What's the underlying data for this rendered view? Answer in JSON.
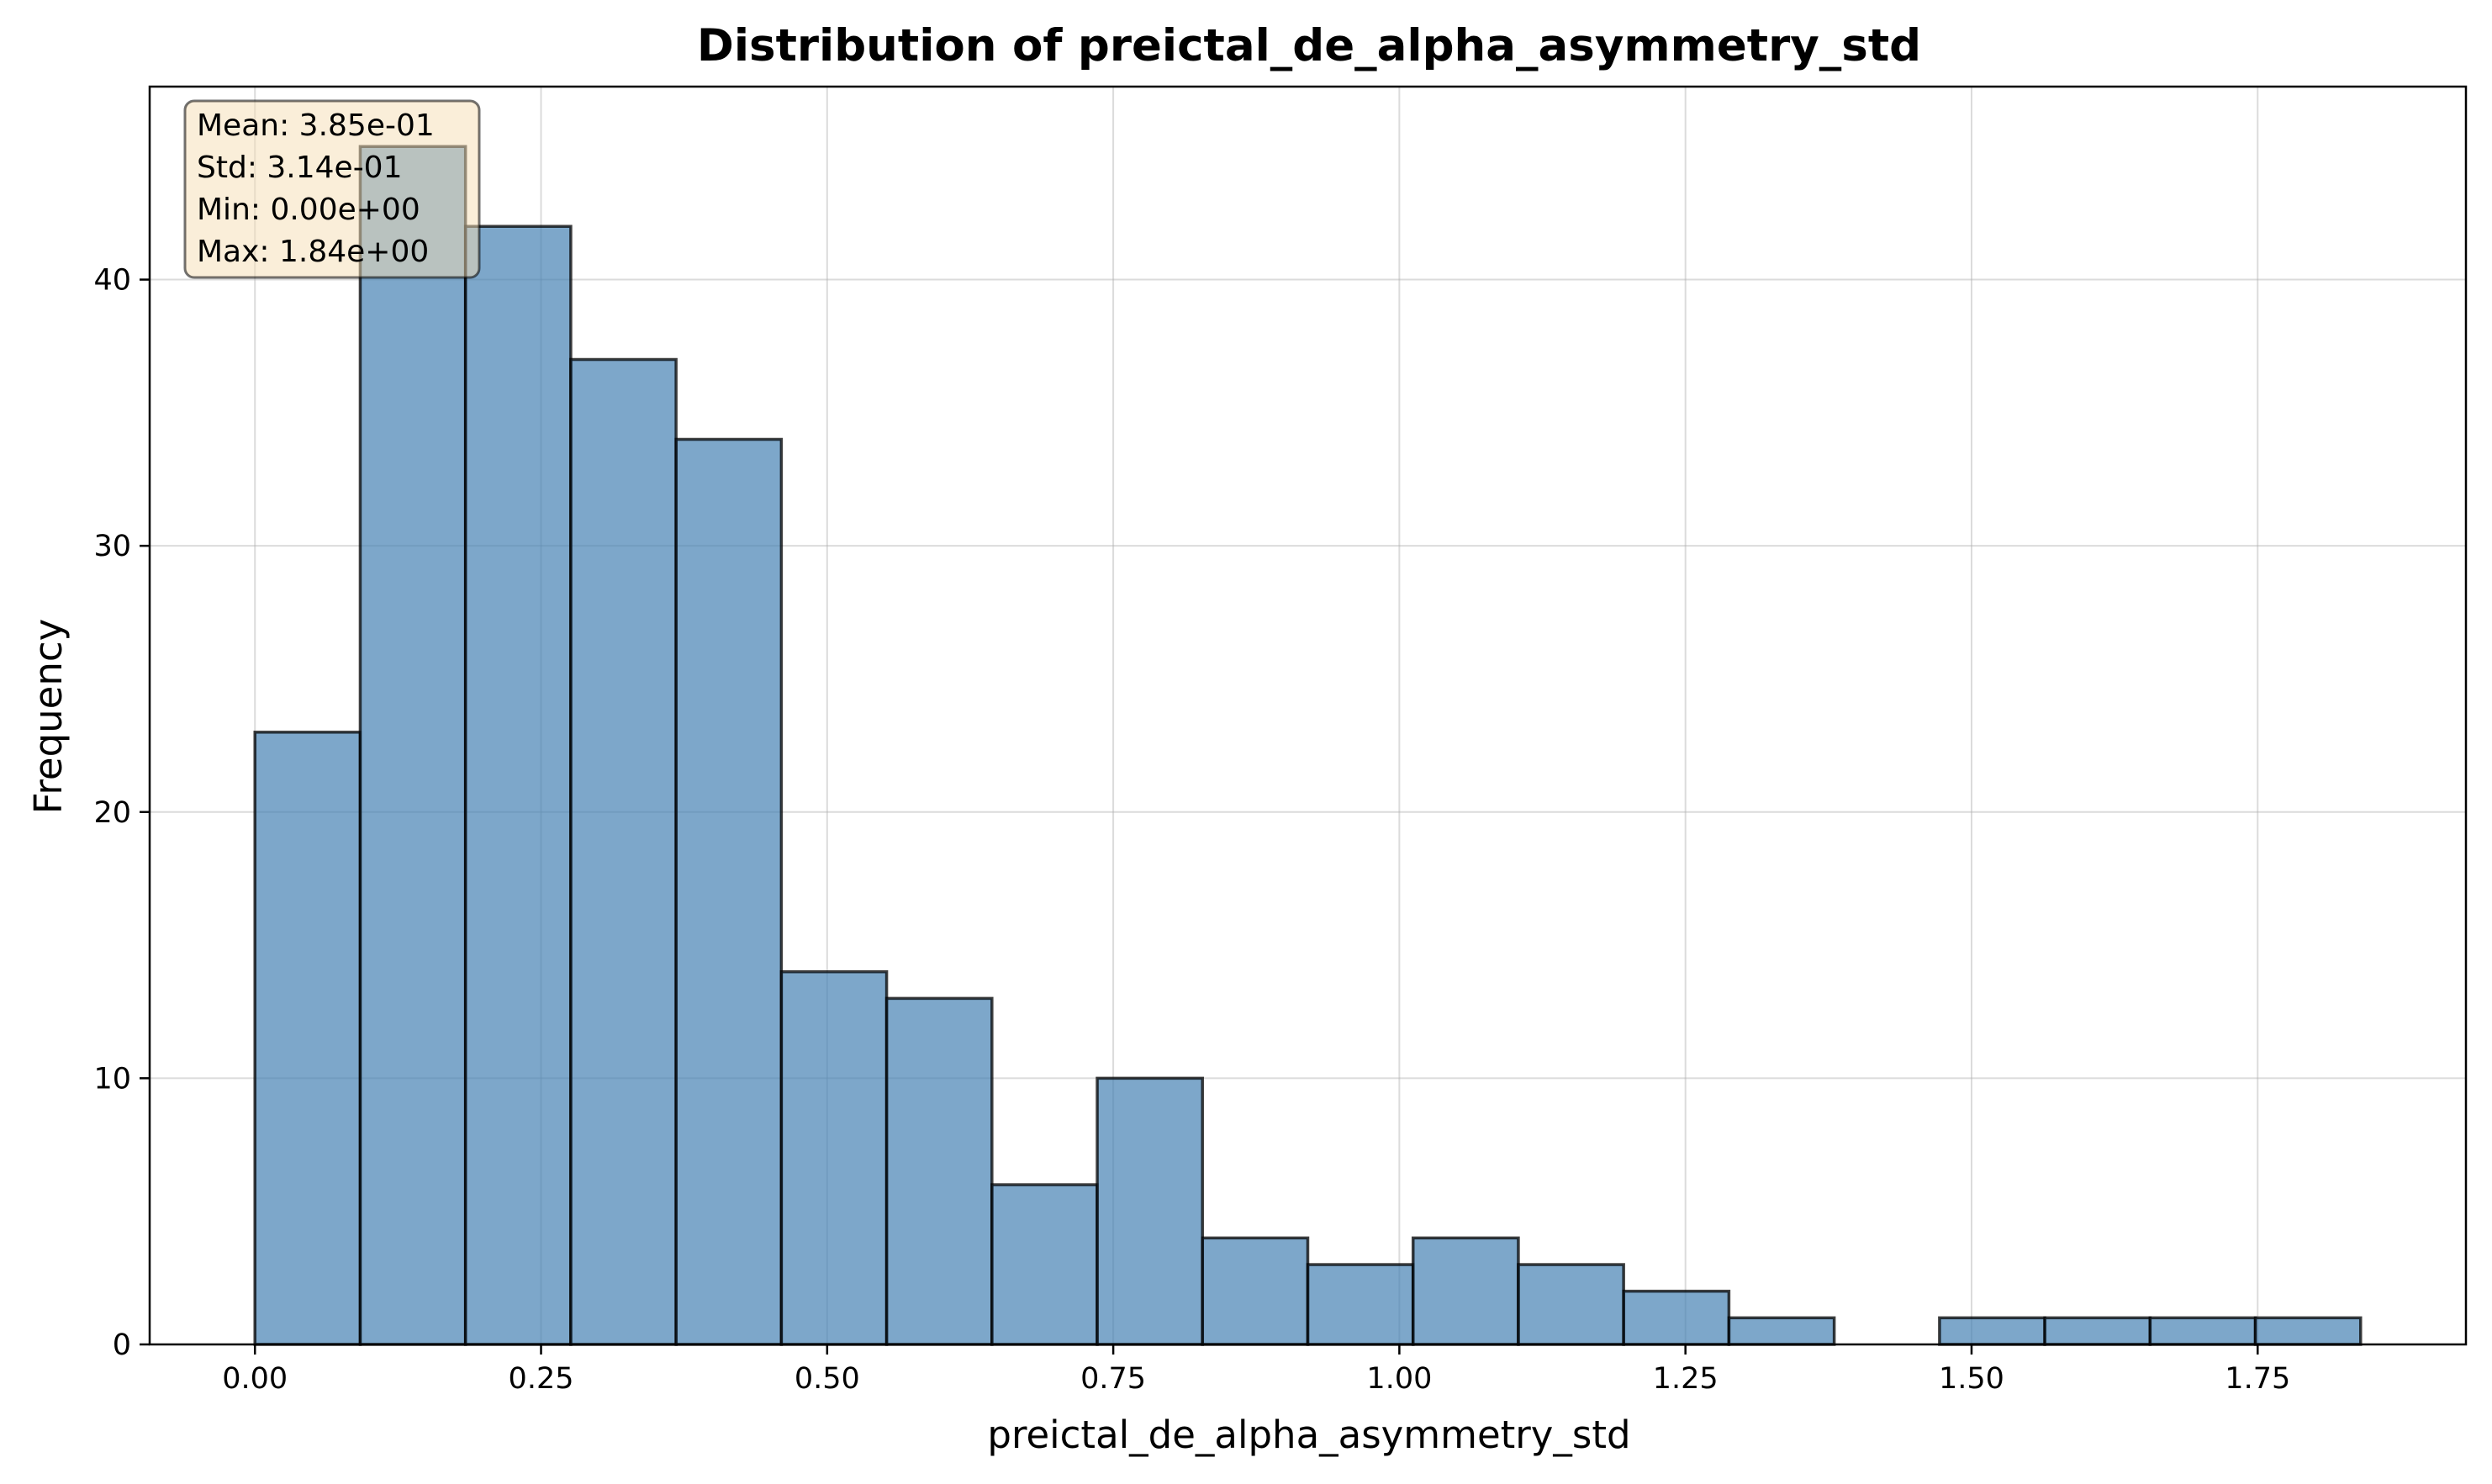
{
  "chart_data": {
    "type": "bar",
    "title": "Distribution of preictal_de_alpha_asymmetry_std",
    "xlabel": "preictal_de_alpha_asymmetry_std",
    "ylabel": "Frequency",
    "bin_edges": [
      0.0,
      0.092,
      0.184,
      0.276,
      0.368,
      0.46,
      0.552,
      0.644,
      0.736,
      0.828,
      0.92,
      1.012,
      1.104,
      1.196,
      1.288,
      1.38,
      1.472,
      1.564,
      1.656,
      1.748,
      1.84
    ],
    "values": [
      23,
      45,
      42,
      37,
      34,
      14,
      13,
      6,
      10,
      4,
      3,
      4,
      3,
      2,
      1,
      0,
      1,
      1,
      1,
      1
    ],
    "xlim": [
      -0.092,
      1.932
    ],
    "ylim": [
      0,
      47.25
    ],
    "xticks": [
      0.0,
      0.25,
      0.5,
      0.75,
      1.0,
      1.25,
      1.5,
      1.75
    ],
    "xtick_labels": [
      "0.00",
      "0.25",
      "0.50",
      "0.75",
      "1.00",
      "1.25",
      "1.50",
      "1.75"
    ],
    "yticks": [
      0,
      10,
      20,
      30,
      40
    ],
    "ytick_labels": [
      "0",
      "10",
      "20",
      "30",
      "40"
    ],
    "grid": true,
    "colors": {
      "bar_fill": "#4682b4",
      "bar_edge": "#000000",
      "stats_box": "#f5deb3"
    },
    "stats_box": {
      "position": "top-left",
      "lines": [
        "Mean: 3.85e-01",
        "Std: 3.14e-01",
        "Min: 0.00e+00",
        "Max: 1.84e+00"
      ]
    }
  }
}
